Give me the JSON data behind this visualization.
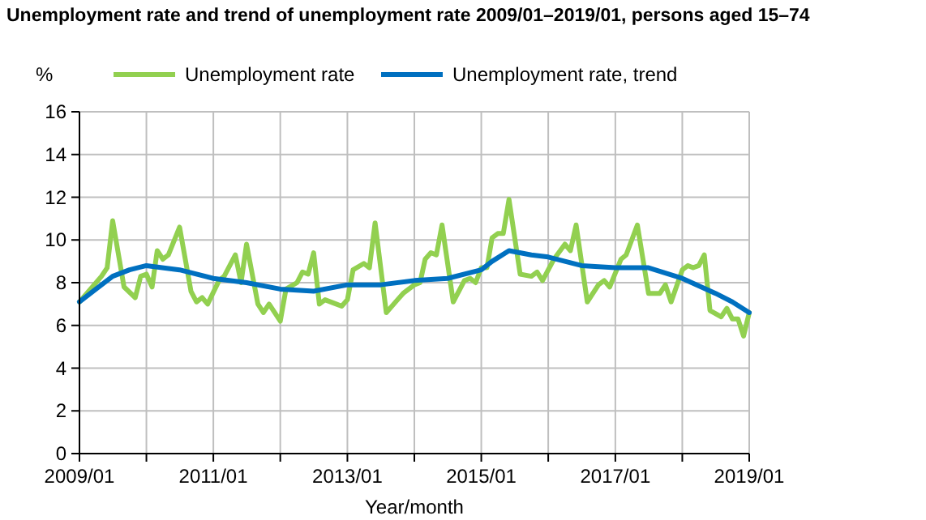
{
  "chart_data": {
    "type": "line",
    "title": "Unemployment rate and trend of unemployment rate 2009/01–2019/01, persons aged 15–74",
    "ylabel": "%",
    "xlabel": "Year/month",
    "series": [
      {
        "name": "Unemployment rate",
        "color": "#92d050",
        "x": [
          "2009-01",
          "2009-05",
          "2009-06",
          "2009-07",
          "2009-09",
          "2009-11",
          "2009-12",
          "2010-01",
          "2010-02",
          "2010-03",
          "2010-04",
          "2010-05",
          "2010-07",
          "2010-09",
          "2010-10",
          "2010-11",
          "2010-12",
          "2011-02",
          "2011-03",
          "2011-05",
          "2011-06",
          "2011-07",
          "2011-09",
          "2011-10",
          "2011-11",
          "2012-01",
          "2012-02",
          "2012-04",
          "2012-05",
          "2012-06",
          "2012-07",
          "2012-08",
          "2012-09",
          "2012-11",
          "2012-12",
          "2013-01",
          "2013-02",
          "2013-04",
          "2013-05",
          "2013-06",
          "2013-08",
          "2013-10",
          "2013-11",
          "2014-01",
          "2014-02",
          "2014-03",
          "2014-04",
          "2014-05",
          "2014-06",
          "2014-08",
          "2014-10",
          "2014-11",
          "2014-12",
          "2015-01",
          "2015-02",
          "2015-03",
          "2015-04",
          "2015-05",
          "2015-06",
          "2015-08",
          "2015-10",
          "2015-11",
          "2015-12",
          "2016-02",
          "2016-04",
          "2016-05",
          "2016-06",
          "2016-08",
          "2016-10",
          "2016-11",
          "2016-12",
          "2017-02",
          "2017-03",
          "2017-05",
          "2017-07",
          "2017-09",
          "2017-10",
          "2017-11",
          "2018-01",
          "2018-02",
          "2018-03",
          "2018-04",
          "2018-05",
          "2018-06",
          "2018-08",
          "2018-09",
          "2018-10",
          "2018-11",
          "2018-12",
          "2019-01"
        ],
        "values": [
          7.1,
          8.3,
          8.7,
          10.9,
          7.8,
          7.3,
          8.3,
          8.4,
          7.8,
          9.5,
          9.1,
          9.3,
          10.6,
          7.6,
          7.1,
          7.3,
          7.0,
          8.1,
          8.3,
          9.3,
          8.0,
          9.8,
          7.0,
          6.6,
          7.0,
          6.2,
          7.7,
          8.0,
          8.5,
          8.4,
          9.4,
          7.0,
          7.2,
          7.0,
          6.9,
          7.2,
          8.6,
          8.9,
          8.7,
          10.8,
          6.6,
          7.2,
          7.5,
          7.9,
          8.0,
          9.1,
          9.4,
          9.3,
          10.7,
          7.1,
          8.1,
          8.2,
          8.0,
          8.7,
          8.7,
          10.1,
          10.3,
          10.3,
          11.9,
          8.4,
          8.3,
          8.5,
          8.1,
          9.1,
          9.8,
          9.5,
          10.7,
          7.1,
          7.9,
          8.1,
          7.8,
          9.1,
          9.3,
          10.7,
          7.5,
          7.5,
          7.9,
          7.1,
          8.6,
          8.8,
          8.7,
          8.8,
          9.3,
          6.7,
          6.4,
          6.8,
          6.3,
          6.3,
          5.5,
          6.6
        ]
      },
      {
        "name": "Unemployment rate, trend",
        "color": "#0070c0",
        "x": [
          "2009-01",
          "2009-04",
          "2009-07",
          "2009-10",
          "2010-01",
          "2010-07",
          "2011-01",
          "2011-07",
          "2012-01",
          "2012-07",
          "2013-01",
          "2013-07",
          "2014-01",
          "2014-07",
          "2015-01",
          "2015-03",
          "2015-06",
          "2015-10",
          "2016-01",
          "2016-07",
          "2017-01",
          "2017-07",
          "2018-01",
          "2018-07",
          "2018-10",
          "2019-01"
        ],
        "values": [
          7.1,
          7.7,
          8.3,
          8.6,
          8.8,
          8.6,
          8.2,
          8.0,
          7.7,
          7.6,
          7.9,
          7.9,
          8.1,
          8.2,
          8.6,
          9.0,
          9.5,
          9.3,
          9.2,
          8.8,
          8.7,
          8.7,
          8.2,
          7.5,
          7.1,
          6.6
        ]
      }
    ],
    "xlim": [
      "2009-01",
      "2019-01"
    ],
    "xticks": [
      {
        "value": "2009-01",
        "label": "2009/01"
      },
      {
        "value": "2010-01",
        "label": null
      },
      {
        "value": "2011-01",
        "label": "2011/01"
      },
      {
        "value": "2012-01",
        "label": null
      },
      {
        "value": "2013-01",
        "label": "2013/01"
      },
      {
        "value": "2014-01",
        "label": null
      },
      {
        "value": "2015-01",
        "label": "2015/01"
      },
      {
        "value": "2016-01",
        "label": null
      },
      {
        "value": "2017-01",
        "label": "2017/01"
      },
      {
        "value": "2018-01",
        "label": null
      },
      {
        "value": "2019-01",
        "label": "2019/01"
      }
    ],
    "ylim": [
      0,
      16
    ],
    "yticks": [
      0,
      2,
      4,
      6,
      8,
      10,
      12,
      14,
      16
    ],
    "grid": true,
    "legend": "top",
    "marker": "none",
    "line_style": "solid"
  }
}
